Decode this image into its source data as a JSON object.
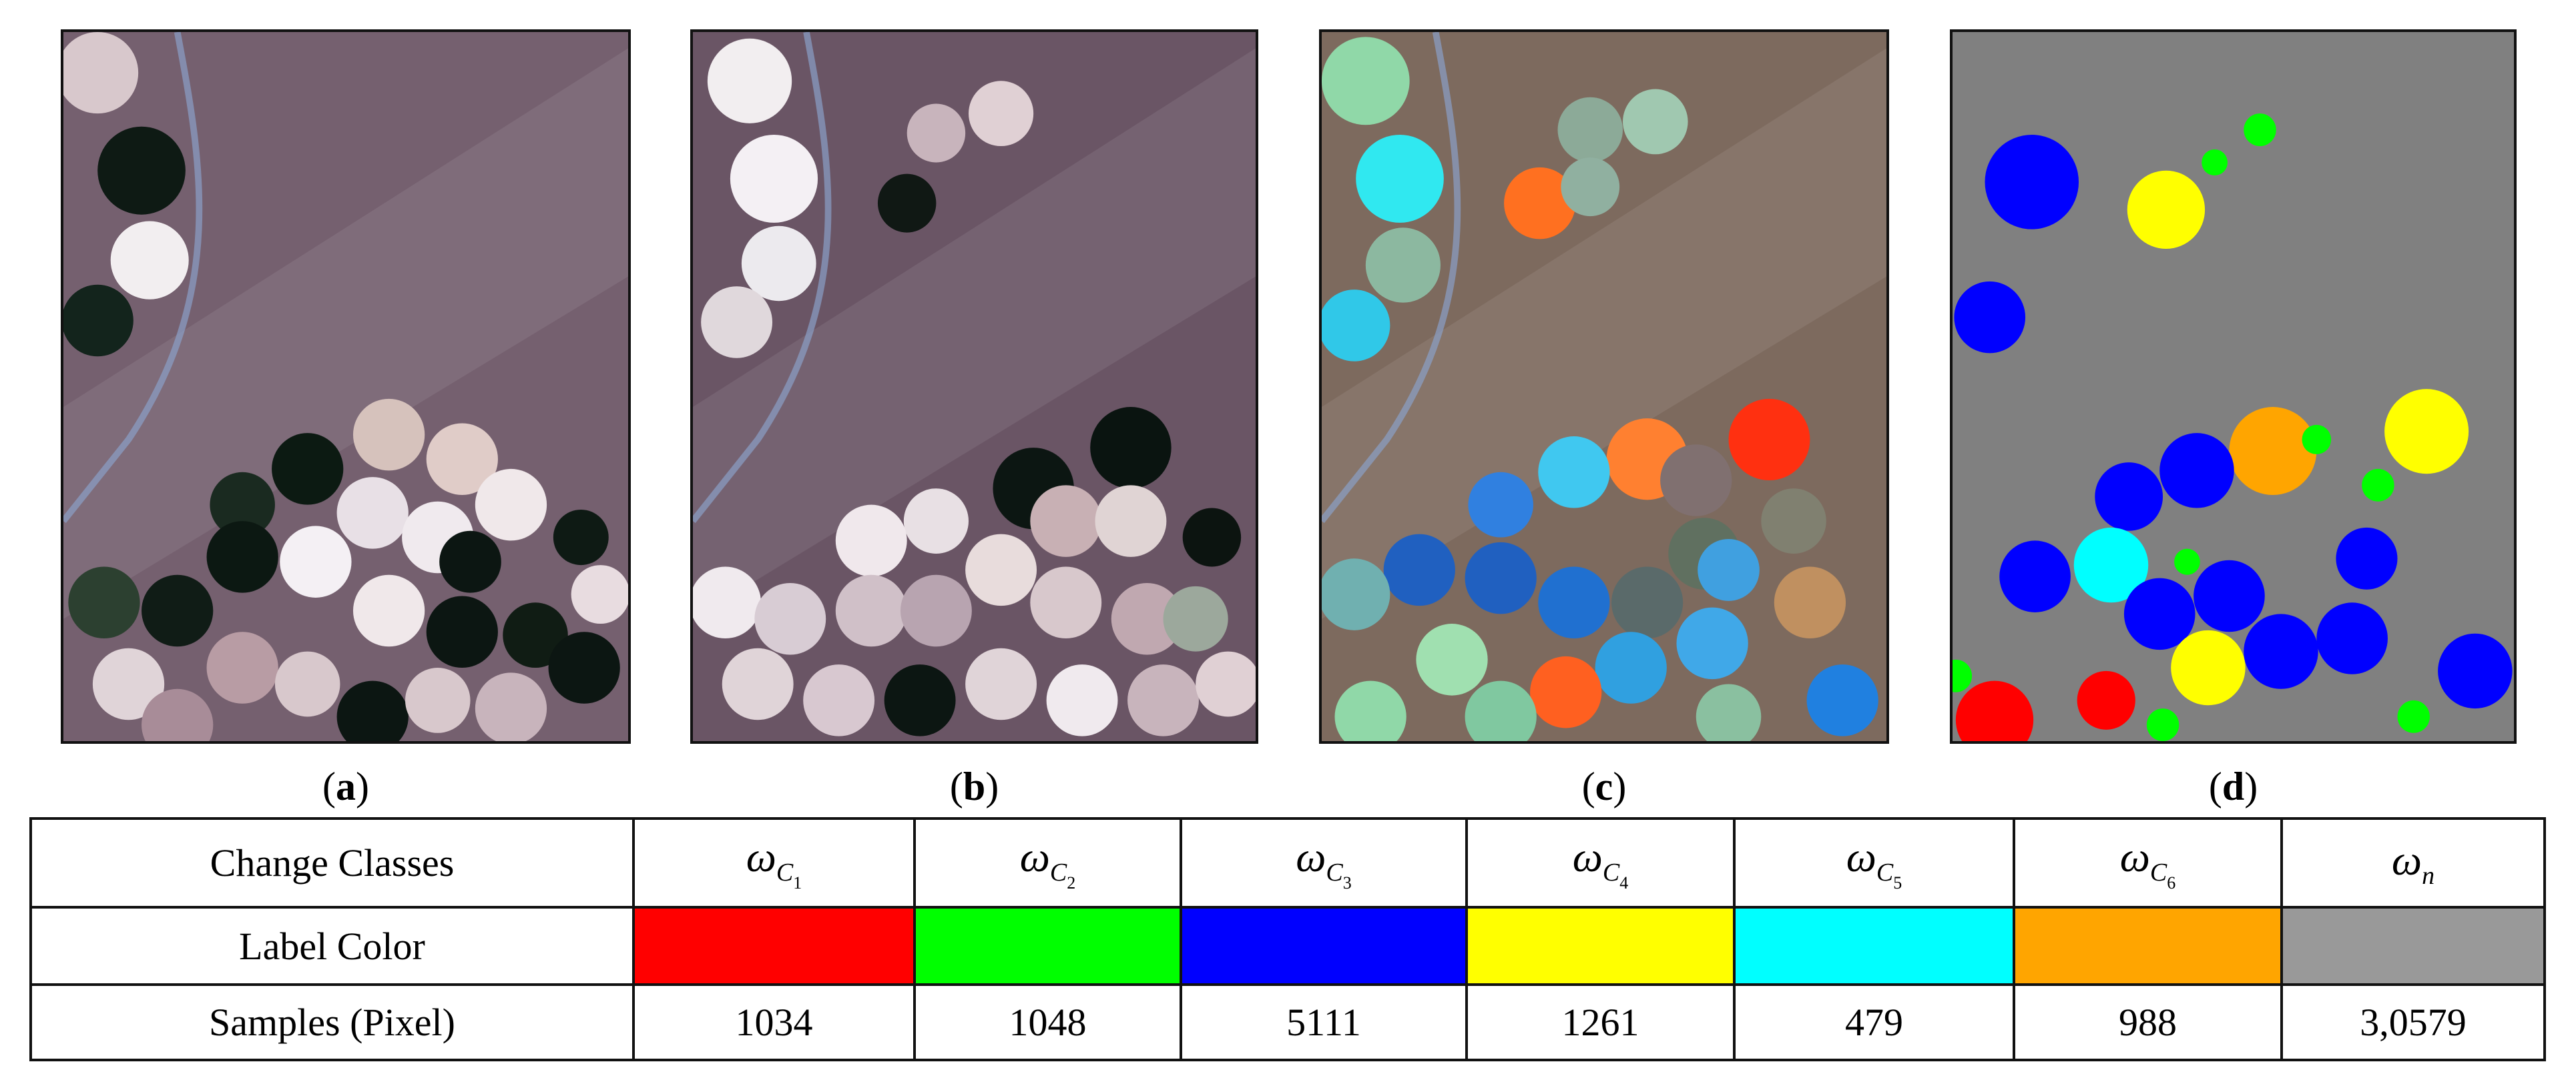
{
  "panels": [
    {
      "prefix": "(",
      "letter": "a",
      "suffix": ")"
    },
    {
      "prefix": "(",
      "letter": "b",
      "suffix": ")"
    },
    {
      "prefix": "(",
      "letter": "c",
      "suffix": ")"
    },
    {
      "prefix": "(",
      "letter": "d",
      "suffix": ")"
    }
  ],
  "table": {
    "row_headers": [
      "Change Classes",
      "Label Color",
      "Samples (Pixel)"
    ],
    "classes": [
      {
        "symbol": "ω",
        "sub": "C",
        "index": "1",
        "color": "#ff0000",
        "samples": "1034"
      },
      {
        "symbol": "ω",
        "sub": "C",
        "index": "2",
        "color": "#00ff00",
        "samples": "1048"
      },
      {
        "symbol": "ω",
        "sub": "C",
        "index": "3",
        "color": "#0000ff",
        "samples": "5111"
      },
      {
        "symbol": "ω",
        "sub": "C",
        "index": "4",
        "color": "#ffff00",
        "samples": "1261"
      },
      {
        "symbol": "ω",
        "sub": "C",
        "index": "5",
        "color": "#00ffff",
        "samples": "479"
      },
      {
        "symbol": "ω",
        "sub": "C",
        "index": "6",
        "color": "#ffa500",
        "samples": "988"
      },
      {
        "symbol": "ω",
        "sub": "n",
        "color": "#999999",
        "samples": "3,0579"
      }
    ]
  }
}
